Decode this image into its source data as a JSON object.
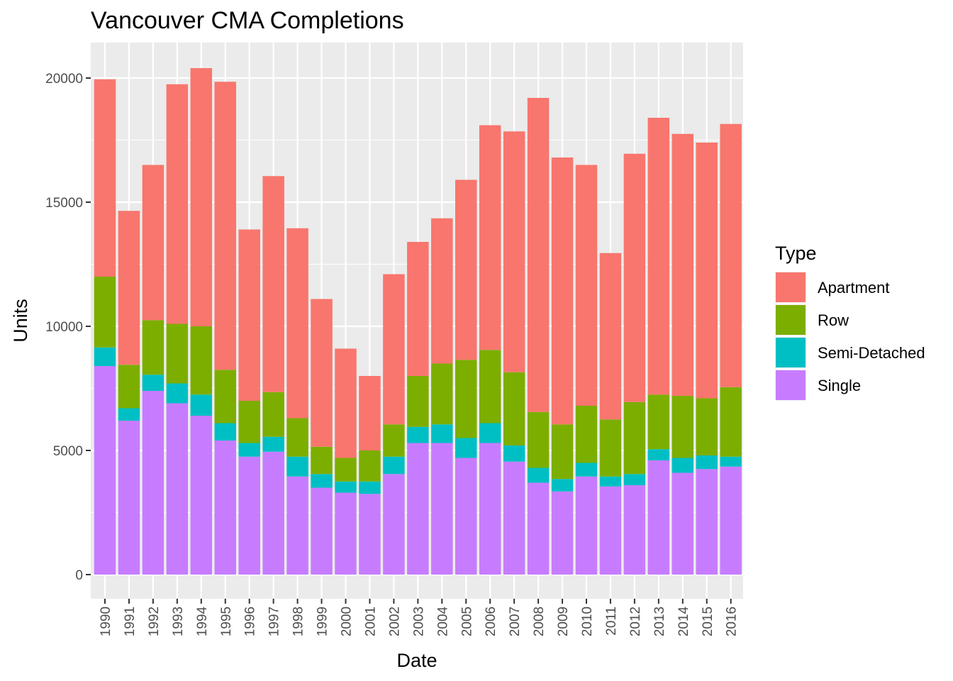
{
  "chart_data": {
    "type": "bar",
    "stacked": true,
    "title": "Vancouver CMA Completions",
    "xlabel": "Date",
    "ylabel": "Units",
    "ylim": [
      -1000,
      21300
    ],
    "yticks": [
      0,
      5000,
      10000,
      15000,
      20000
    ],
    "grid": true,
    "legend_position": "right",
    "legend_title": "Type",
    "categories": [
      "1990",
      "1991",
      "1992",
      "1993",
      "1994",
      "1995",
      "1996",
      "1997",
      "1998",
      "1999",
      "2000",
      "2001",
      "2002",
      "2003",
      "2004",
      "2005",
      "2006",
      "2007",
      "2008",
      "2009",
      "2010",
      "2011",
      "2012",
      "2013",
      "2014",
      "2015",
      "2016"
    ],
    "series": [
      {
        "name": "Single",
        "color": "#C77CFF",
        "values": [
          8400,
          6200,
          7400,
          6900,
          6400,
          5400,
          4750,
          4950,
          3950,
          3500,
          3300,
          3250,
          4050,
          5300,
          5300,
          4700,
          5300,
          4550,
          3700,
          3350,
          3950,
          3550,
          3600,
          4600,
          4100,
          4250,
          4350
        ]
      },
      {
        "name": "Semi-Detached",
        "color": "#00BFC4",
        "values": [
          750,
          500,
          650,
          800,
          850,
          700,
          550,
          600,
          800,
          550,
          450,
          500,
          700,
          650,
          750,
          800,
          800,
          650,
          600,
          500,
          550,
          400,
          450,
          450,
          600,
          550,
          400
        ]
      },
      {
        "name": "Row",
        "color": "#7CAE00",
        "values": [
          2850,
          1750,
          2200,
          2400,
          2750,
          2150,
          1700,
          1800,
          1550,
          1100,
          950,
          1250,
          1300,
          2050,
          2450,
          3150,
          2950,
          2950,
          2250,
          2200,
          2300,
          2300,
          2900,
          2200,
          2500,
          2300,
          2800
        ]
      },
      {
        "name": "Apartment",
        "color": "#F8766D",
        "values": [
          7950,
          6200,
          6250,
          9650,
          10400,
          11600,
          6900,
          8700,
          7650,
          5950,
          4400,
          3000,
          6050,
          5400,
          5850,
          7250,
          9050,
          9700,
          12650,
          10750,
          9700,
          6700,
          10000,
          11150,
          10550,
          10300,
          10600
        ]
      }
    ],
    "legend_order": [
      "Apartment",
      "Row",
      "Semi-Detached",
      "Single"
    ]
  }
}
